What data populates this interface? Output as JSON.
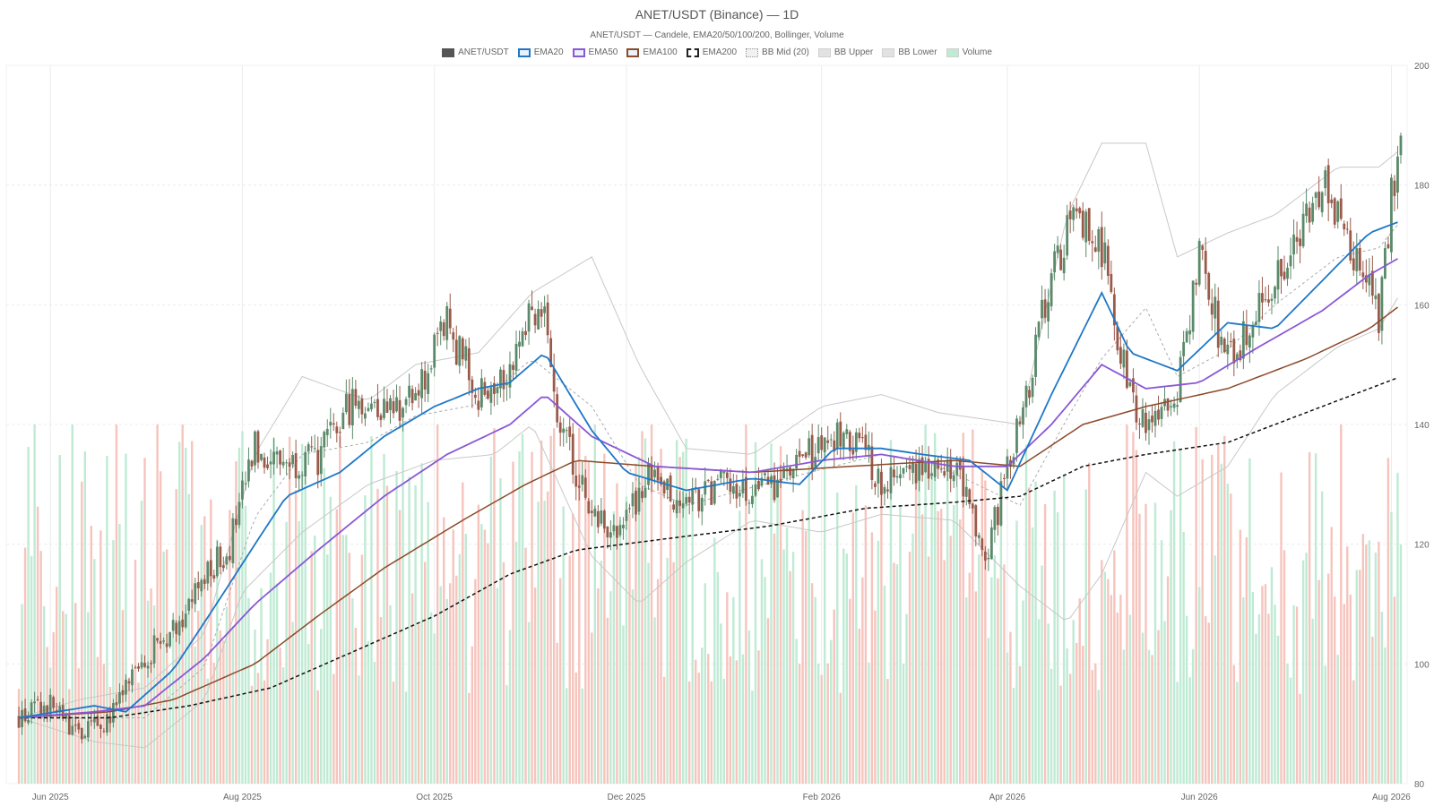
{
  "title": "ANET/USDT (Binance) — 1D",
  "subtitle": "ANET/USDT — Candele, EMA20/50/100/200, Bollinger, Volume",
  "legend": [
    {
      "label": "ANET/USDT",
      "color": "#555555",
      "style": "solid-fill"
    },
    {
      "label": "EMA20",
      "color": "#1f77c8",
      "style": "line"
    },
    {
      "label": "EMA50",
      "color": "#8a57d6",
      "style": "line"
    },
    {
      "label": "EMA100",
      "color": "#8b4a2a",
      "style": "line"
    },
    {
      "label": "EMA200",
      "color": "#222222",
      "style": "dashed"
    },
    {
      "label": "BB Mid (20)",
      "color": "#bbbbbb",
      "style": "dotted"
    },
    {
      "label": "BB Upper",
      "color": "#cccccc",
      "style": "fill"
    },
    {
      "label": "BB Lower",
      "color": "#cccccc",
      "style": "fill"
    },
    {
      "label": "Volume",
      "color": "#bfead3",
      "style": "fill"
    }
  ],
  "chart_data": {
    "type": "candlestick",
    "y_axis": {
      "side": "right",
      "range": [
        80,
        200
      ],
      "ticks": [
        80,
        100,
        120,
        140,
        160,
        180,
        200
      ]
    },
    "x_axis": {
      "ticks": [
        "Jun 2025",
        "Aug 2025",
        "Oct 2025",
        "Dec 2025",
        "Feb 2026",
        "Apr 2026",
        "Jun 2026",
        "Aug 2026"
      ]
    },
    "grid": true,
    "legend_position": "top-center",
    "colors": {
      "up": "#5a8a6a",
      "down": "#9a5a4a",
      "vol_up": "#bfead3",
      "vol_down": "#f6c4bd"
    },
    "close_anchors": [
      [
        "2025-05-22",
        91
      ],
      [
        "2025-06-01",
        93
      ],
      [
        "2025-06-10",
        88
      ],
      [
        "2025-06-20",
        91
      ],
      [
        "2025-07-01",
        101
      ],
      [
        "2025-07-10",
        106
      ],
      [
        "2025-07-20",
        114
      ],
      [
        "2025-07-28",
        120
      ],
      [
        "2025-08-05",
        136
      ],
      [
        "2025-08-15",
        134
      ],
      [
        "2025-08-25",
        134
      ],
      [
        "2025-09-05",
        144
      ],
      [
        "2025-09-15",
        143
      ],
      [
        "2025-09-25",
        144
      ],
      [
        "2025-10-05",
        157
      ],
      [
        "2025-10-15",
        145
      ],
      [
        "2025-10-25",
        150
      ],
      [
        "2025-11-01",
        160
      ],
      [
        "2025-11-05",
        157
      ],
      [
        "2025-11-10",
        140
      ],
      [
        "2025-11-20",
        125
      ],
      [
        "2025-11-28",
        122
      ],
      [
        "2025-12-08",
        131
      ],
      [
        "2025-12-20",
        127
      ],
      [
        "2026-01-01",
        130
      ],
      [
        "2026-01-10",
        128
      ],
      [
        "2026-01-20",
        131
      ],
      [
        "2026-02-01",
        137
      ],
      [
        "2026-02-10",
        138
      ],
      [
        "2026-02-20",
        131
      ],
      [
        "2026-03-01",
        133
      ],
      [
        "2026-03-15",
        134
      ],
      [
        "2026-03-25",
        118
      ],
      [
        "2026-04-05",
        140
      ],
      [
        "2026-04-15",
        165
      ],
      [
        "2026-04-22",
        175
      ],
      [
        "2026-05-01",
        170
      ],
      [
        "2026-05-08",
        150
      ],
      [
        "2026-05-15",
        138
      ],
      [
        "2026-05-25",
        145
      ],
      [
        "2026-06-01",
        168
      ],
      [
        "2026-06-10",
        150
      ],
      [
        "2026-06-20",
        160
      ],
      [
        "2026-07-01",
        168
      ],
      [
        "2026-07-10",
        180
      ],
      [
        "2026-07-20",
        168
      ],
      [
        "2026-07-28",
        158
      ],
      [
        "2026-08-01",
        178
      ],
      [
        "2026-08-04",
        189
      ]
    ],
    "ema20_anchors": [
      [
        "2025-05-22",
        91
      ],
      [
        "2025-06-15",
        93
      ],
      [
        "2025-06-25",
        92
      ],
      [
        "2025-07-10",
        99
      ],
      [
        "2025-07-25",
        111
      ],
      [
        "2025-08-05",
        120
      ],
      [
        "2025-08-15",
        128
      ],
      [
        "2025-09-01",
        132
      ],
      [
        "2025-09-15",
        138
      ],
      [
        "2025-10-01",
        143
      ],
      [
        "2025-10-15",
        146
      ],
      [
        "2025-10-25",
        147
      ],
      [
        "2025-11-05",
        152
      ],
      [
        "2025-11-20",
        139
      ],
      [
        "2025-12-01",
        132
      ],
      [
        "2025-12-20",
        129
      ],
      [
        "2026-01-10",
        131
      ],
      [
        "2026-01-25",
        130
      ],
      [
        "2026-02-05",
        136
      ],
      [
        "2026-02-20",
        136
      ],
      [
        "2026-03-05",
        135
      ],
      [
        "2026-03-20",
        134
      ],
      [
        "2026-04-01",
        129
      ],
      [
        "2026-04-15",
        145
      ],
      [
        "2026-05-01",
        162
      ],
      [
        "2026-05-10",
        152
      ],
      [
        "2026-05-25",
        149
      ],
      [
        "2026-06-10",
        157
      ],
      [
        "2026-06-25",
        156
      ],
      [
        "2026-07-10",
        164
      ],
      [
        "2026-07-25",
        172
      ],
      [
        "2026-08-04",
        174
      ]
    ],
    "ema50_anchors": [
      [
        "2025-05-22",
        91
      ],
      [
        "2025-06-15",
        92
      ],
      [
        "2025-07-01",
        93
      ],
      [
        "2025-07-20",
        101
      ],
      [
        "2025-08-05",
        110
      ],
      [
        "2025-08-25",
        119
      ],
      [
        "2025-09-15",
        128
      ],
      [
        "2025-10-05",
        135
      ],
      [
        "2025-10-25",
        140
      ],
      [
        "2025-11-05",
        145
      ],
      [
        "2025-11-20",
        138
      ],
      [
        "2025-12-10",
        133
      ],
      [
        "2026-01-10",
        132
      ],
      [
        "2026-02-01",
        134
      ],
      [
        "2026-02-20",
        135
      ],
      [
        "2026-03-15",
        133
      ],
      [
        "2026-04-01",
        133
      ],
      [
        "2026-04-15",
        140
      ],
      [
        "2026-05-01",
        150
      ],
      [
        "2026-05-15",
        146
      ],
      [
        "2026-06-01",
        147
      ],
      [
        "2026-06-20",
        153
      ],
      [
        "2026-07-10",
        159
      ],
      [
        "2026-07-25",
        165
      ],
      [
        "2026-08-04",
        168
      ]
    ],
    "ema100_anchors": [
      [
        "2025-05-22",
        91
      ],
      [
        "2025-06-20",
        92
      ],
      [
        "2025-07-10",
        94
      ],
      [
        "2025-08-05",
        100
      ],
      [
        "2025-08-25",
        108
      ],
      [
        "2025-09-15",
        116
      ],
      [
        "2025-10-10",
        124
      ],
      [
        "2025-10-30",
        130
      ],
      [
        "2025-11-15",
        134
      ],
      [
        "2025-12-10",
        133
      ],
      [
        "2026-01-10",
        132
      ],
      [
        "2026-02-10",
        133
      ],
      [
        "2026-03-15",
        134
      ],
      [
        "2026-04-05",
        133
      ],
      [
        "2026-04-25",
        140
      ],
      [
        "2026-05-15",
        143
      ],
      [
        "2026-06-10",
        146
      ],
      [
        "2026-07-05",
        151
      ],
      [
        "2026-07-25",
        156
      ],
      [
        "2026-08-04",
        160
      ]
    ],
    "ema200_anchors": [
      [
        "2025-05-22",
        91
      ],
      [
        "2025-06-20",
        91
      ],
      [
        "2025-07-15",
        93
      ],
      [
        "2025-08-10",
        96
      ],
      [
        "2025-09-05",
        102
      ],
      [
        "2025-10-01",
        108
      ],
      [
        "2025-10-25",
        115
      ],
      [
        "2025-11-15",
        119
      ],
      [
        "2025-12-15",
        121
      ],
      [
        "2026-01-15",
        123
      ],
      [
        "2026-02-15",
        126
      ],
      [
        "2026-03-15",
        127
      ],
      [
        "2026-04-05",
        128
      ],
      [
        "2026-04-25",
        133
      ],
      [
        "2026-05-15",
        135
      ],
      [
        "2026-06-10",
        137
      ],
      [
        "2026-07-05",
        142
      ],
      [
        "2026-08-04",
        148
      ]
    ],
    "bb_upper_anchors": [
      [
        "2025-05-22",
        91
      ],
      [
        "2025-06-10",
        94
      ],
      [
        "2025-07-01",
        96
      ],
      [
        "2025-07-20",
        105
      ],
      [
        "2025-08-05",
        135
      ],
      [
        "2025-08-20",
        148
      ],
      [
        "2025-09-10",
        144
      ],
      [
        "2025-09-25",
        150
      ],
      [
        "2025-10-15",
        152
      ],
      [
        "2025-11-01",
        162
      ],
      [
        "2025-11-20",
        168
      ],
      [
        "2025-12-05",
        150
      ],
      [
        "2025-12-20",
        136
      ],
      [
        "2026-01-10",
        135
      ],
      [
        "2026-02-01",
        143
      ],
      [
        "2026-02-20",
        145
      ],
      [
        "2026-03-10",
        142
      ],
      [
        "2026-04-05",
        140
      ],
      [
        "2026-04-20",
        175
      ],
      [
        "2026-05-01",
        187
      ],
      [
        "2026-05-15",
        187
      ],
      [
        "2026-05-25",
        168
      ],
      [
        "2026-06-10",
        172
      ],
      [
        "2026-06-25",
        175
      ],
      [
        "2026-07-15",
        183
      ],
      [
        "2026-07-28",
        183
      ],
      [
        "2026-08-04",
        186
      ]
    ],
    "bb_lower_anchors": [
      [
        "2025-05-22",
        91
      ],
      [
        "2025-06-15",
        87
      ],
      [
        "2025-07-01",
        86
      ],
      [
        "2025-07-20",
        94
      ],
      [
        "2025-08-01",
        112
      ],
      [
        "2025-08-20",
        122
      ],
      [
        "2025-09-10",
        130
      ],
      [
        "2025-10-01",
        134
      ],
      [
        "2025-10-20",
        135
      ],
      [
        "2025-11-01",
        140
      ],
      [
        "2025-11-20",
        118
      ],
      [
        "2025-12-05",
        110
      ],
      [
        "2025-12-20",
        117
      ],
      [
        "2026-01-10",
        124
      ],
      [
        "2026-02-01",
        122
      ],
      [
        "2026-02-20",
        125
      ],
      [
        "2026-03-15",
        124
      ],
      [
        "2026-04-05",
        113
      ],
      [
        "2026-04-20",
        107
      ],
      [
        "2026-05-01",
        115
      ],
      [
        "2026-05-15",
        132
      ],
      [
        "2026-05-25",
        128
      ],
      [
        "2026-06-10",
        133
      ],
      [
        "2026-06-25",
        145
      ],
      [
        "2026-07-15",
        153
      ],
      [
        "2026-07-28",
        156
      ],
      [
        "2026-08-04",
        162
      ]
    ],
    "volume_pattern": "bars along bottom, green when close>open, red when close<open; height roughly proportional to volume"
  }
}
